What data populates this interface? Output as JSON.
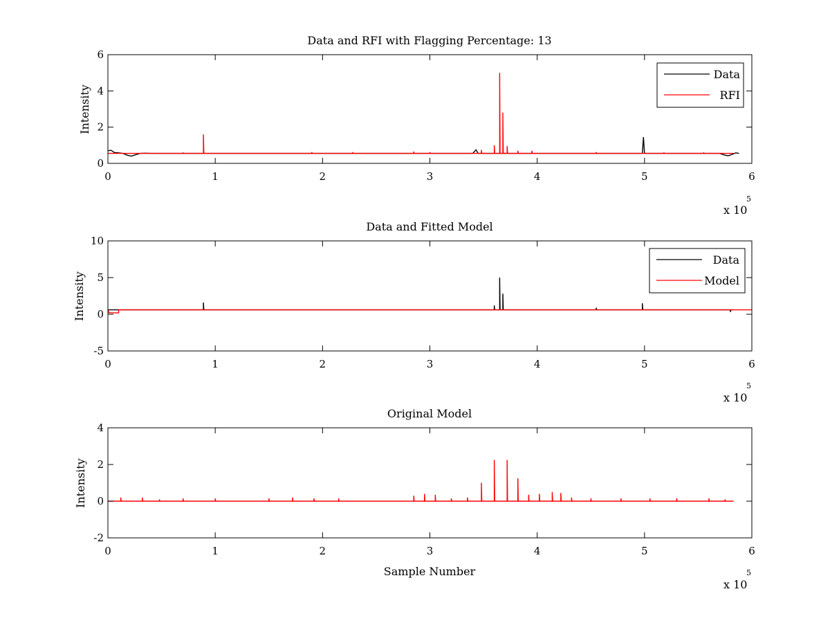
{
  "chart_data": [
    {
      "type": "line",
      "title": "Data and RFI with Flagging Percentage: 13",
      "xlabel": "",
      "ylabel": "Intensity",
      "xlim": [
        0,
        600000
      ],
      "ylim": [
        0,
        6
      ],
      "x_ticks": [
        0,
        1,
        2,
        3,
        4,
        5,
        6
      ],
      "y_ticks": [
        0,
        2,
        4,
        6
      ],
      "x_multiplier": "x 10",
      "x_multiplier_exp": "5",
      "legend": {
        "position": "top-right",
        "entries": [
          {
            "name": "Data",
            "color": "#000000"
          },
          {
            "name": "RFI",
            "color": "#ff0000"
          }
        ]
      },
      "series": [
        {
          "name": "Data",
          "color": "#000000",
          "baseline": 0.55,
          "points": [
            [
              0,
              0.7
            ],
            [
              3000,
              0.72
            ],
            [
              6000,
              0.6
            ],
            [
              10000,
              0.58
            ],
            [
              14000,
              0.55
            ],
            [
              18000,
              0.45
            ],
            [
              22000,
              0.4
            ],
            [
              26000,
              0.48
            ],
            [
              30000,
              0.55
            ],
            [
              35000,
              0.56
            ],
            [
              40000,
              0.55
            ],
            [
              340000,
              0.55
            ],
            [
              343000,
              0.75
            ],
            [
              345000,
              0.55
            ],
            [
              498000,
              0.55
            ],
            [
              499000,
              1.45
            ],
            [
              500000,
              0.55
            ],
            [
              570000,
              0.55
            ],
            [
              575000,
              0.45
            ],
            [
              578000,
              0.42
            ],
            [
              582000,
              0.5
            ],
            [
              585000,
              0.58
            ],
            [
              588000,
              0.55
            ]
          ]
        },
        {
          "name": "RFI",
          "color": "#ff0000",
          "baseline": 0.55,
          "spikes": [
            [
              89000,
              1.6
            ],
            [
              365000,
              5.0
            ],
            [
              368000,
              2.8
            ],
            [
              360000,
              1.0
            ],
            [
              372000,
              0.95
            ],
            [
              348000,
              0.75
            ],
            [
              382000,
              0.7
            ],
            [
              395000,
              0.7
            ],
            [
              285000,
              0.65
            ],
            [
              300000,
              0.62
            ],
            [
              190000,
              0.62
            ],
            [
              228000,
              0.62
            ],
            [
              455000,
              0.62
            ],
            [
              518000,
              0.6
            ],
            [
              70000,
              0.6
            ],
            [
              555000,
              0.6
            ]
          ]
        }
      ]
    },
    {
      "type": "line",
      "title": "Data and Fitted Model",
      "xlabel": "",
      "ylabel": "Intensity",
      "xlim": [
        0,
        600000
      ],
      "ylim": [
        -5,
        10
      ],
      "x_ticks": [
        0,
        1,
        2,
        3,
        4,
        5,
        6
      ],
      "y_ticks": [
        -5,
        0,
        5,
        10
      ],
      "x_multiplier": "x 10",
      "x_multiplier_exp": "5",
      "legend": {
        "position": "top-right",
        "entries": [
          {
            "name": "Data",
            "color": "#000000"
          },
          {
            "name": "Model",
            "color": "#ff0000"
          }
        ]
      },
      "series": [
        {
          "name": "Data",
          "color": "#000000",
          "baseline": 0.6,
          "spikes": [
            [
              89000,
              1.6
            ],
            [
              365000,
              5.0
            ],
            [
              368000,
              2.8
            ],
            [
              360000,
              1.2
            ],
            [
              498000,
              1.5
            ],
            [
              455000,
              0.9
            ],
            [
              580000,
              0.3
            ]
          ]
        },
        {
          "name": "Model",
          "color": "#ff0000",
          "baseline": 0.6,
          "points": [
            [
              0,
              0.6
            ],
            [
              1000,
              0.2
            ],
            [
              10000,
              0.2
            ],
            [
              10000,
              0.6
            ],
            [
              600000,
              0.6
            ]
          ]
        }
      ]
    },
    {
      "type": "line",
      "title": "Original Model",
      "xlabel": "Sample Number",
      "ylabel": "Intensity",
      "xlim": [
        0,
        600000
      ],
      "ylim": [
        -2,
        4
      ],
      "x_ticks": [
        0,
        1,
        2,
        3,
        4,
        5,
        6
      ],
      "y_ticks": [
        -2,
        0,
        2,
        4
      ],
      "x_multiplier": "x 10",
      "x_multiplier_exp": "5",
      "series": [
        {
          "name": "",
          "color": "#ff0000",
          "baseline": 0.0,
          "spikes": [
            [
              12000,
              0.2
            ],
            [
              32000,
              0.2
            ],
            [
              48000,
              0.1
            ],
            [
              70000,
              0.15
            ],
            [
              100000,
              0.15
            ],
            [
              150000,
              0.15
            ],
            [
              172000,
              0.2
            ],
            [
              192000,
              0.15
            ],
            [
              215000,
              0.15
            ],
            [
              285000,
              0.3
            ],
            [
              295000,
              0.4
            ],
            [
              305000,
              0.35
            ],
            [
              320000,
              0.15
            ],
            [
              335000,
              0.2
            ],
            [
              348000,
              1.0
            ],
            [
              360000,
              2.25
            ],
            [
              372000,
              2.25
            ],
            [
              382000,
              1.25
            ],
            [
              392000,
              0.35
            ],
            [
              402000,
              0.4
            ],
            [
              414000,
              0.5
            ],
            [
              422000,
              0.45
            ],
            [
              432000,
              0.2
            ],
            [
              450000,
              0.15
            ],
            [
              478000,
              0.15
            ],
            [
              505000,
              0.15
            ],
            [
              530000,
              0.15
            ],
            [
              560000,
              0.15
            ],
            [
              575000,
              0.1
            ]
          ]
        }
      ]
    }
  ]
}
